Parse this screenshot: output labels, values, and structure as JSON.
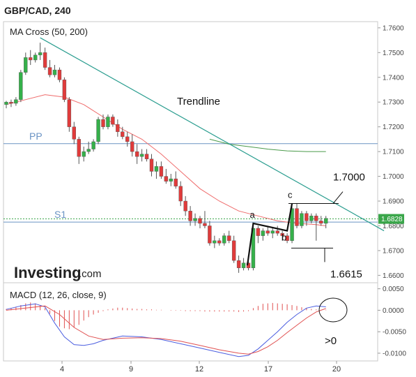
{
  "header": {
    "symbol": "GBP/CAD, 240"
  },
  "chart_data": [
    {
      "type": "candlestick",
      "title": "GBP/CAD, 240",
      "indicator_label": "MA Cross (50, 200)",
      "x_ticks": [
        "4",
        "9",
        "12",
        "17",
        "20"
      ],
      "y_ticks": [
        "1.7600",
        "1.7500",
        "1.7400",
        "1.7300",
        "1.7200",
        "1.7100",
        "1.7000",
        "1.6900",
        "1.6800",
        "1.6700",
        "1.6600"
      ],
      "ylim": [
        1.657,
        1.7625
      ],
      "current_price": "1.6828",
      "candles": [
        [
          1.729,
          1.7305,
          1.7275,
          1.73
        ],
        [
          1.73,
          1.731,
          1.728,
          1.7295
        ],
        [
          1.7295,
          1.732,
          1.7285,
          1.731
        ],
        [
          1.731,
          1.743,
          1.73,
          1.742
        ],
        [
          1.742,
          1.75,
          1.741,
          1.748
        ],
        [
          1.748,
          1.751,
          1.745,
          1.747
        ],
        [
          1.747,
          1.75,
          1.746,
          1.749
        ],
        [
          1.749,
          1.754,
          1.747,
          1.75
        ],
        [
          1.75,
          1.752,
          1.743,
          1.744
        ],
        [
          1.744,
          1.747,
          1.74,
          1.741
        ],
        [
          1.741,
          1.745,
          1.74,
          1.743
        ],
        [
          1.743,
          1.744,
          1.738,
          1.739
        ],
        [
          1.739,
          1.74,
          1.73,
          1.731
        ],
        [
          1.731,
          1.732,
          1.718,
          1.72
        ],
        [
          1.72,
          1.722,
          1.713,
          1.715
        ],
        [
          1.715,
          1.716,
          1.705,
          1.708
        ],
        [
          1.708,
          1.712,
          1.706,
          1.71
        ],
        [
          1.71,
          1.714,
          1.709,
          1.711
        ],
        [
          1.711,
          1.715,
          1.71,
          1.714
        ],
        [
          1.714,
          1.724,
          1.713,
          1.723
        ],
        [
          1.723,
          1.725,
          1.719,
          1.72
        ],
        [
          1.72,
          1.725,
          1.719,
          1.724
        ],
        [
          1.724,
          1.725,
          1.72,
          1.721
        ],
        [
          1.721,
          1.723,
          1.716,
          1.718
        ],
        [
          1.718,
          1.72,
          1.715,
          1.716
        ],
        [
          1.716,
          1.718,
          1.712,
          1.714
        ],
        [
          1.714,
          1.717,
          1.708,
          1.71
        ],
        [
          1.71,
          1.713,
          1.705,
          1.708
        ],
        [
          1.708,
          1.711,
          1.706,
          1.709
        ],
        [
          1.709,
          1.711,
          1.706,
          1.707
        ],
        [
          1.707,
          1.709,
          1.7,
          1.702
        ],
        [
          1.702,
          1.706,
          1.699,
          1.704
        ],
        [
          1.704,
          1.706,
          1.699,
          1.7
        ],
        [
          1.7,
          1.703,
          1.697,
          1.698
        ],
        [
          1.698,
          1.701,
          1.696,
          1.699
        ],
        [
          1.699,
          1.702,
          1.695,
          1.696
        ],
        [
          1.696,
          1.698,
          1.688,
          1.69
        ],
        [
          1.69,
          1.692,
          1.684,
          1.686
        ],
        [
          1.686,
          1.688,
          1.68,
          1.682
        ],
        [
          1.682,
          1.685,
          1.68,
          1.683
        ],
        [
          1.683,
          1.684,
          1.679,
          1.681
        ],
        [
          1.681,
          1.686,
          1.679,
          1.68
        ],
        [
          1.68,
          1.682,
          1.672,
          1.673
        ],
        [
          1.673,
          1.676,
          1.671,
          1.674
        ],
        [
          1.674,
          1.675,
          1.672,
          1.673
        ],
        [
          1.673,
          1.677,
          1.672,
          1.676
        ],
        [
          1.676,
          1.678,
          1.673,
          1.674
        ],
        [
          1.674,
          1.676,
          1.665,
          1.666
        ],
        [
          1.666,
          1.668,
          1.661,
          1.663
        ],
        [
          1.663,
          1.667,
          1.662,
          1.665
        ],
        [
          1.665,
          1.666,
          1.662,
          1.663
        ],
        [
          1.663,
          1.681,
          1.662,
          1.679
        ],
        [
          1.679,
          1.68,
          1.673,
          1.676
        ],
        [
          1.676,
          1.679,
          1.674,
          1.678
        ],
        [
          1.678,
          1.68,
          1.676,
          1.677
        ],
        [
          1.677,
          1.679,
          1.675,
          1.678
        ],
        [
          1.678,
          1.68,
          1.676,
          1.677
        ],
        [
          1.677,
          1.678,
          1.674,
          1.676
        ],
        [
          1.676,
          1.677,
          1.673,
          1.674
        ],
        [
          1.674,
          1.689,
          1.673,
          1.687
        ],
        [
          1.687,
          1.689,
          1.679,
          1.68
        ],
        [
          1.68,
          1.686,
          1.679,
          1.685
        ],
        [
          1.685,
          1.686,
          1.68,
          1.682
        ],
        [
          1.682,
          1.685,
          1.681,
          1.684
        ],
        [
          1.684,
          1.685,
          1.674,
          1.682
        ],
        [
          1.682,
          1.684,
          1.68,
          1.681
        ],
        [
          1.681,
          1.684,
          1.679,
          1.683
        ]
      ],
      "ma_fast": [
        [
          0,
          1.729
        ],
        [
          4,
          1.731
        ],
        [
          8,
          1.733
        ],
        [
          12,
          1.732
        ],
        [
          16,
          1.729
        ],
        [
          20,
          1.724
        ],
        [
          24,
          1.719
        ],
        [
          28,
          1.715
        ],
        [
          32,
          1.709
        ],
        [
          36,
          1.702
        ],
        [
          40,
          1.695
        ],
        [
          44,
          1.69
        ],
        [
          48,
          1.686
        ],
        [
          52,
          1.684
        ],
        [
          56,
          1.682
        ],
        [
          60,
          1.681
        ],
        [
          64,
          1.6805
        ],
        [
          66,
          1.68
        ]
      ],
      "ma_slow": [
        [
          42,
          1.715
        ],
        [
          46,
          1.713
        ],
        [
          50,
          1.712
        ],
        [
          54,
          1.711
        ],
        [
          58,
          1.7103
        ],
        [
          62,
          1.71
        ],
        [
          66,
          1.71
        ]
      ],
      "pivot_lines": [
        {
          "name": "PP",
          "value": 1.7132,
          "color": "#6a93c4"
        },
        {
          "name": "S1",
          "value": 1.6815,
          "color": "#6a93c4"
        }
      ],
      "support_dotted": 1.6828,
      "trendline": {
        "name": "Trendline",
        "from": [
          7,
          1.756
        ],
        "to": [
          78,
          1.678
        ],
        "color": "#2a9d8f"
      },
      "pattern_points": [
        {
          "name": "a",
          "at": [
            51,
            1.681
          ]
        },
        {
          "name": "b",
          "at": [
            58,
            1.678
          ]
        },
        {
          "name": "c",
          "at": [
            59,
            1.689
          ]
        }
      ],
      "levels": [
        {
          "label": "1.7000",
          "value": 1.689
        },
        {
          "label": "1.6615",
          "value": 1.671
        }
      ]
    },
    {
      "type": "macd",
      "label": "MACD (12, 26, close, 9)",
      "y_ticks": [
        "0.0050",
        "0.0000",
        "-0.0050",
        "-0.0100"
      ],
      "ylim": [
        -0.0118,
        0.0064
      ],
      "histogram": [
        0.0003,
        0.0005,
        0.0008,
        0.0012,
        0.0016,
        0.0018,
        0.0016,
        0.0012,
        0.0005,
        -0.0008,
        -0.0025,
        -0.0038,
        -0.0042,
        -0.0044,
        -0.004,
        -0.0034,
        -0.0024,
        -0.0016,
        -0.001,
        -0.0006,
        -0.0002,
        0.0002,
        0.0004,
        0.0006,
        0.0006,
        0.0005,
        0.0004,
        0.0003,
        0.0003,
        0.0002,
        0.0002,
        0.0001,
        0.0001,
        0.0,
        -0.0001,
        -0.0001,
        -0.0001,
        -0.0002,
        -0.0002,
        -0.0002,
        -0.0002,
        -0.0003,
        -0.0003,
        -0.0003,
        -0.0003,
        -0.0003,
        -0.0003,
        -0.0003,
        -0.0004,
        -0.0003,
        -0.0002,
        0.0005,
        0.001,
        0.0015,
        0.0016,
        0.0017,
        0.0016,
        0.0015,
        0.0014,
        0.0012,
        0.001,
        0.0007,
        0.0005,
        0.0003,
        0.0002,
        0.0001,
        0.0001
      ],
      "macd_line": [
        [
          0,
          0.0002
        ],
        [
          3,
          0.001
        ],
        [
          6,
          0.0015
        ],
        [
          8,
          0.0008
        ],
        [
          10,
          -0.003
        ],
        [
          12,
          -0.0062
        ],
        [
          14,
          -0.008
        ],
        [
          16,
          -0.0082
        ],
        [
          18,
          -0.0078
        ],
        [
          20,
          -0.007
        ],
        [
          24,
          -0.006
        ],
        [
          28,
          -0.0062
        ],
        [
          32,
          -0.0068
        ],
        [
          36,
          -0.0078
        ],
        [
          40,
          -0.0088
        ],
        [
          44,
          -0.0098
        ],
        [
          48,
          -0.0108
        ],
        [
          50,
          -0.0105
        ],
        [
          52,
          -0.009
        ],
        [
          54,
          -0.007
        ],
        [
          56,
          -0.005
        ],
        [
          58,
          -0.0028
        ],
        [
          60,
          -0.001
        ],
        [
          62,
          0.0005
        ],
        [
          64,
          0.001
        ],
        [
          66,
          0.0008
        ]
      ],
      "signal_line": [
        [
          0,
          0.0
        ],
        [
          4,
          0.0005
        ],
        [
          8,
          0.001
        ],
        [
          11,
          -0.001
        ],
        [
          14,
          -0.004
        ],
        [
          17,
          -0.006
        ],
        [
          20,
          -0.0068
        ],
        [
          24,
          -0.0065
        ],
        [
          28,
          -0.0064
        ],
        [
          32,
          -0.0066
        ],
        [
          36,
          -0.0072
        ],
        [
          40,
          -0.0082
        ],
        [
          44,
          -0.0092
        ],
        [
          48,
          -0.01
        ],
        [
          50,
          -0.0102
        ],
        [
          52,
          -0.0096
        ],
        [
          54,
          -0.0085
        ],
        [
          56,
          -0.007
        ],
        [
          58,
          -0.0052
        ],
        [
          60,
          -0.0035
        ],
        [
          62,
          -0.0018
        ],
        [
          64,
          -0.0004
        ],
        [
          66,
          0.0004
        ]
      ],
      "annotation": ">0"
    }
  ],
  "branding": {
    "name": "Investing",
    "suffix": ".com"
  },
  "colors": {
    "up": "#35b04a",
    "down": "#e03b3b",
    "ma_fast": "#ef6b6b",
    "ma_slow": "#4a9a4a",
    "trendline": "#2a9d8f",
    "macd": "#4a5de0",
    "signal": "#e05050",
    "hist": "#e05050",
    "price_tag": "#3aa64a",
    "dotted": "#3aa64a"
  }
}
